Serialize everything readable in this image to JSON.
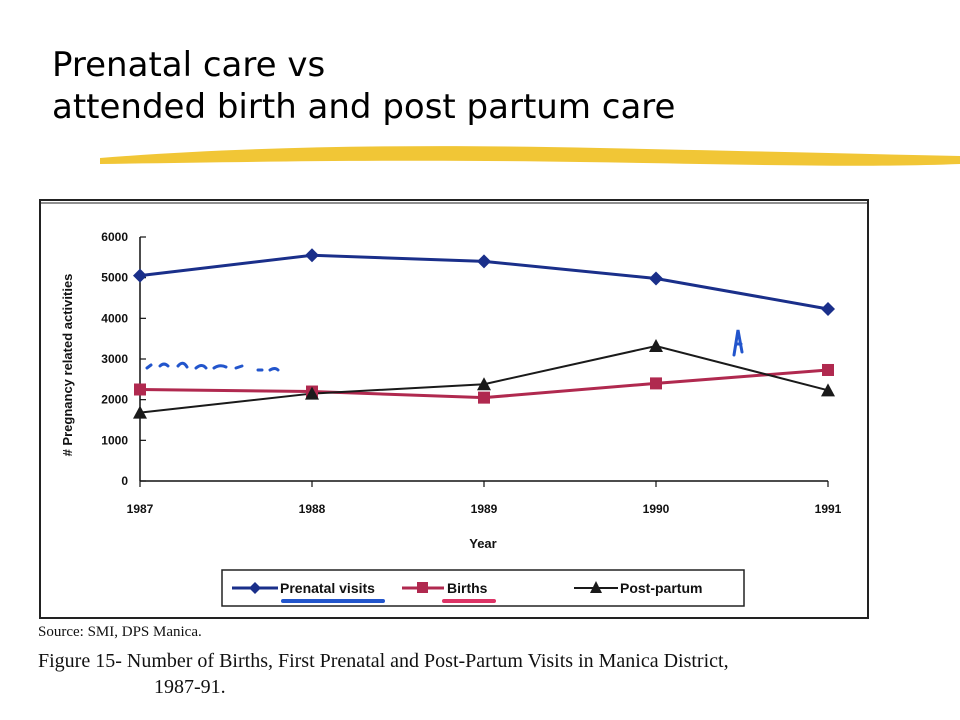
{
  "slide": {
    "title_line1": "Prenatal care vs",
    "title_line2": "attended birth and post partum care",
    "underline_color": "#f0c020"
  },
  "caption": {
    "source": "Source: SMI, DPS Manica.",
    "figure": "Figure 15- Number of Births, First Prenatal and Post-Partum Visits in Manica District,",
    "years": "1987-91."
  },
  "annotations": {
    "blue_ink_color": "#2255cc",
    "pink_ink_color": "#dd3366"
  },
  "chart_data": {
    "type": "line",
    "x": [
      "1987",
      "1988",
      "1989",
      "1990",
      "1991"
    ],
    "xlabel": "Year",
    "ylabel": "# Pregnancy related activities",
    "ylim": [
      0,
      6000
    ],
    "yticks": [
      "0",
      "1000",
      "2000",
      "3000",
      "4000",
      "5000",
      "6000"
    ],
    "grid": false,
    "legend_position": "bottom",
    "series": [
      {
        "name": "Prenatal visits",
        "values": [
          5050,
          5550,
          5400,
          4980,
          4230
        ],
        "marker": "diamond",
        "color": "#1a2f8a"
      },
      {
        "name": "Births",
        "values": [
          2250,
          2200,
          2050,
          2400,
          2730
        ],
        "marker": "square",
        "color": "#b0294f"
      },
      {
        "name": "Post-partum",
        "values": [
          1680,
          2150,
          2380,
          3320,
          2230
        ],
        "marker": "triangle",
        "color": "#1a1a1a"
      }
    ]
  }
}
